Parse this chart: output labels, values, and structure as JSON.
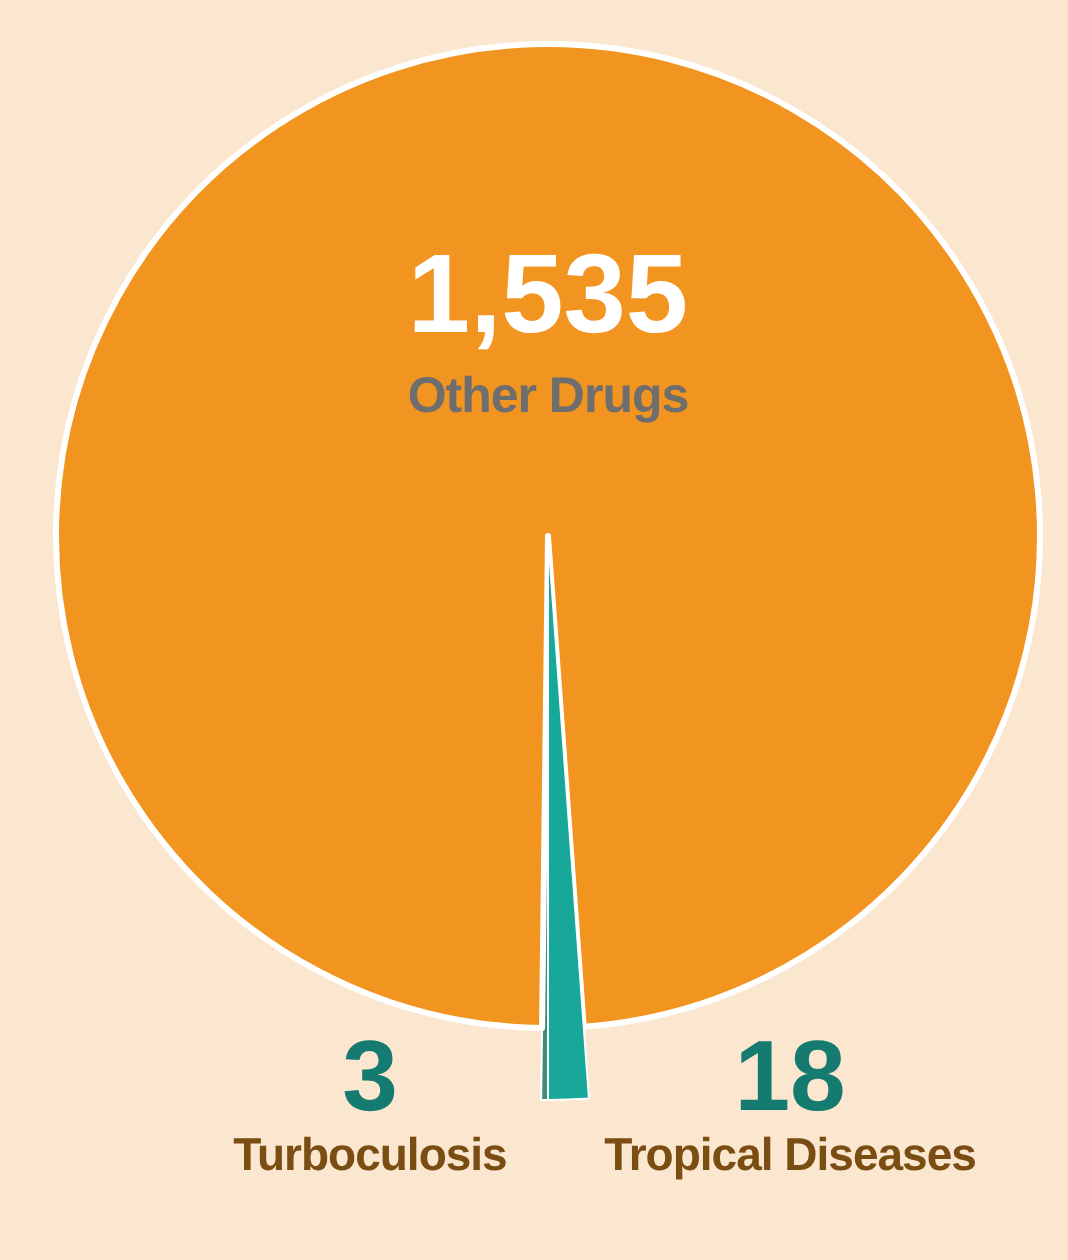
{
  "chart_data": {
    "type": "pie",
    "categories": [
      "Turboculosis",
      "Other Drugs",
      "Tropical Diseases"
    ],
    "values": [
      3,
      1535,
      18
    ],
    "colors": [
      "#3d8c7c",
      "#f29420",
      "#17a89a"
    ],
    "value_labels": [
      "3",
      "1,535",
      "18"
    ]
  }
}
